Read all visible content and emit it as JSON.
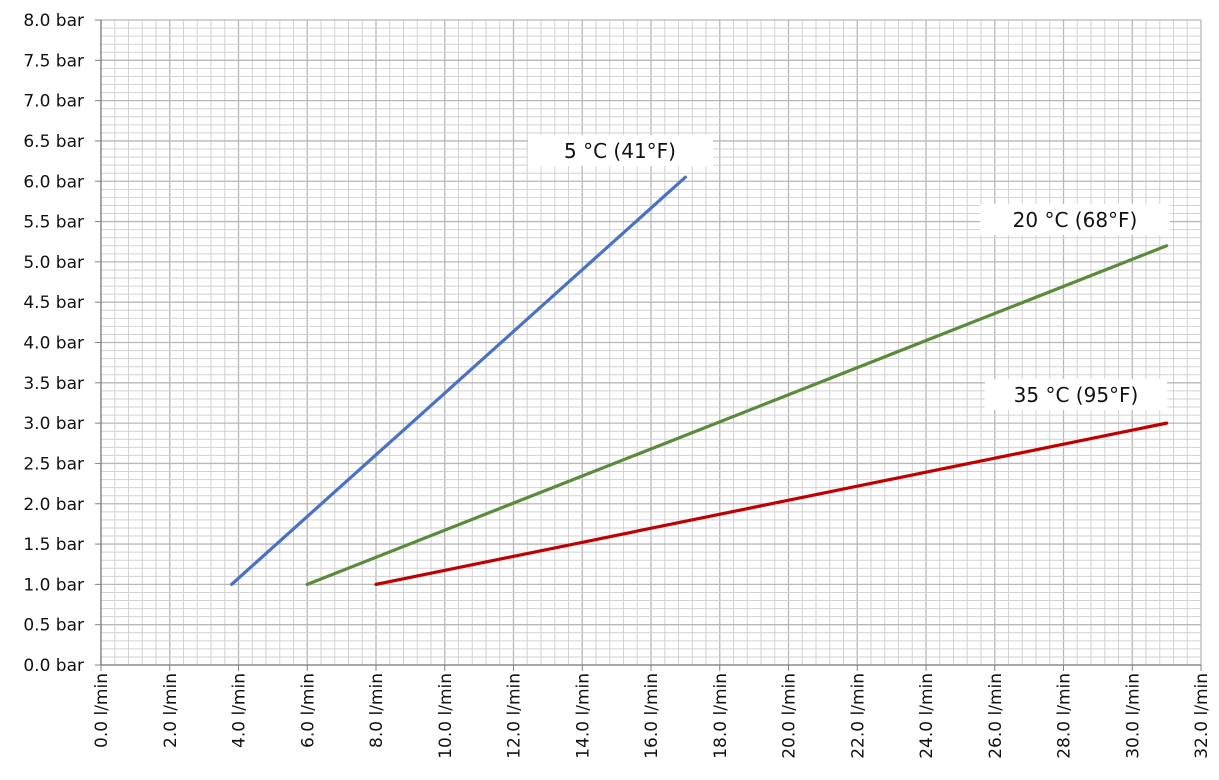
{
  "chart_data": {
    "type": "line",
    "title": "",
    "xlabel": "",
    "ylabel": "",
    "xlim": [
      0,
      32
    ],
    "ylim": [
      0,
      8
    ],
    "grid": true,
    "x_ticks": [
      "0.0 l/min",
      "2.0 l/min",
      "4.0 l/min",
      "6.0 l/min",
      "8.0 l/min",
      "10.0 l/min",
      "12.0 l/min",
      "14.0 l/min",
      "16.0 l/min",
      "18.0 l/min",
      "20.0 l/min",
      "22.0 l/min",
      "24.0 l/min",
      "26.0 l/min",
      "28.0 l/min",
      "30.0 l/min",
      "32.0 l/min"
    ],
    "y_ticks": [
      "0.0 bar",
      "0.5 bar",
      "1.0 bar",
      "1.5 bar",
      "2.0 bar",
      "2.5 bar",
      "3.0 bar",
      "3.5 bar",
      "4.0 bar",
      "4.5 bar",
      "5.0 bar",
      "5.5 bar",
      "6.0 bar",
      "6.5 bar",
      "7.0 bar",
      "7.5 bar",
      "8.0 bar"
    ],
    "series": [
      {
        "name": "5 °C (41°F)",
        "color": "#4a72c4",
        "x": [
          3.8,
          17.0
        ],
        "y": [
          1.0,
          6.05
        ]
      },
      {
        "name": "20 °C (68°F)",
        "color": "#5a8a3a",
        "x": [
          6.0,
          31.0
        ],
        "y": [
          1.0,
          5.2
        ]
      },
      {
        "name": "35 °C (95°F)",
        "color": "#c00000",
        "x": [
          8.0,
          31.0
        ],
        "y": [
          1.0,
          3.0
        ]
      }
    ]
  }
}
